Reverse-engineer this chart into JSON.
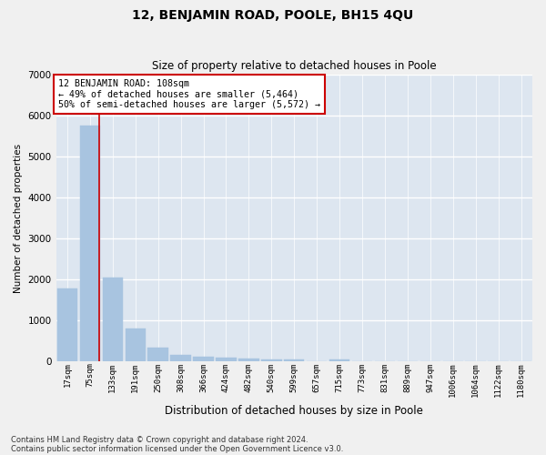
{
  "title": "12, BENJAMIN ROAD, POOLE, BH15 4QU",
  "subtitle": "Size of property relative to detached houses in Poole",
  "xlabel": "Distribution of detached houses by size in Poole",
  "ylabel": "Number of detached properties",
  "footnote1": "Contains HM Land Registry data © Crown copyright and database right 2024.",
  "footnote2": "Contains public sector information licensed under the Open Government Licence v3.0.",
  "categories": [
    "17sqm",
    "75sqm",
    "133sqm",
    "191sqm",
    "250sqm",
    "308sqm",
    "366sqm",
    "424sqm",
    "482sqm",
    "540sqm",
    "599sqm",
    "657sqm",
    "715sqm",
    "773sqm",
    "831sqm",
    "889sqm",
    "947sqm",
    "1006sqm",
    "1064sqm",
    "1122sqm",
    "1180sqm"
  ],
  "values": [
    1780,
    5750,
    2050,
    800,
    330,
    170,
    120,
    100,
    60,
    50,
    50,
    0,
    50,
    0,
    0,
    0,
    0,
    0,
    0,
    0,
    0
  ],
  "bar_color": "#a8c4e0",
  "bg_color": "#dde6f0",
  "grid_color": "#ffffff",
  "vline_x": 1.42,
  "vline_color": "#cc0000",
  "annotation_text": "12 BENJAMIN ROAD: 108sqm\n← 49% of detached houses are smaller (5,464)\n50% of semi-detached houses are larger (5,572) →",
  "annotation_box_edgecolor": "#cc0000",
  "ylim": [
    0,
    7000
  ],
  "yticks": [
    0,
    1000,
    2000,
    3000,
    4000,
    5000,
    6000,
    7000
  ]
}
